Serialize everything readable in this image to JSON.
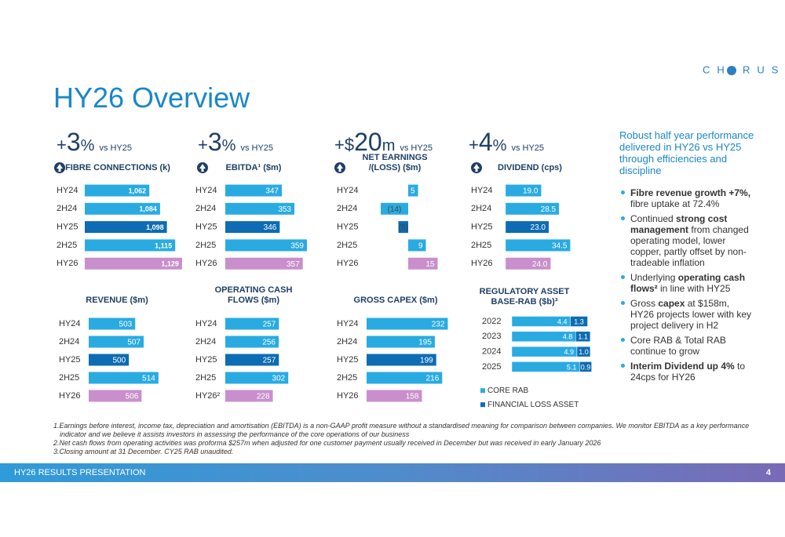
{
  "header": {
    "title": "HY26 Overview",
    "logo": [
      "CH",
      "RUS"
    ]
  },
  "chart_data": [
    {
      "type": "bar",
      "title": "FIBRE CONNECTIONS (k)",
      "headline": {
        "prefix": "+",
        "value": 3,
        "unit": "%",
        "comparison": "vs HY25"
      },
      "categories": [
        "HY24",
        "2H24",
        "HY25",
        "2H25",
        "HY26"
      ],
      "values": [
        1062,
        1084,
        1098,
        1115,
        1129
      ],
      "value_labels": [
        "1,062",
        "1,084",
        "1,098",
        "1,115",
        "1,129"
      ],
      "colors": [
        "#29abe2",
        "#29abe2",
        "#0d6cb3",
        "#29abe2",
        "#c88fcc"
      ],
      "xlim": [
        930,
        1150
      ]
    },
    {
      "type": "bar",
      "title": "EBITDA¹ ($m)",
      "headline": {
        "prefix": "+",
        "value": 3,
        "unit": "%",
        "comparison": "vs HY25"
      },
      "categories": [
        "HY24",
        "2H24",
        "HY25",
        "2H25",
        "HY26"
      ],
      "values": [
        347,
        353,
        346,
        359,
        357
      ],
      "colors": [
        "#29abe2",
        "#29abe2",
        "#0d6cb3",
        "#29abe2",
        "#c88fcc"
      ],
      "xlim": [
        320,
        365
      ]
    },
    {
      "type": "bar",
      "title": "NET EARNINGS /(LOSS) ($m)",
      "headline": {
        "prefix": "+$",
        "value": 20,
        "unit": "m",
        "comparison": "vs HY25"
      },
      "categories": [
        "HY24",
        "2H24",
        "HY25",
        "2H25",
        "HY26"
      ],
      "values": [
        5,
        -14,
        -5,
        9,
        15
      ],
      "value_labels": [
        "5",
        "(14)",
        "(5)",
        "9",
        "15"
      ],
      "colors": [
        "#29abe2",
        "#29abe2",
        "#0d6cb3",
        "#29abe2",
        "#c88fcc"
      ],
      "xlim": [
        -18,
        20
      ]
    },
    {
      "type": "bar",
      "title": "DIVIDEND (cps)",
      "headline": {
        "prefix": "+",
        "value": 4,
        "unit": "%",
        "comparison": "vs HY25"
      },
      "categories": [
        "HY24",
        "2H24",
        "HY25",
        "2H25",
        "HY26"
      ],
      "values": [
        19,
        28.5,
        23,
        34.5,
        24
      ],
      "value_labels": [
        "19.0",
        "28.5",
        "23.0",
        "34.5",
        "24.0"
      ],
      "colors": [
        "#29abe2",
        "#29abe2",
        "#0d6cb3",
        "#29abe2",
        "#c88fcc"
      ],
      "xlim": [
        -3,
        36
      ]
    },
    {
      "type": "bar",
      "title": "REVENUE ($m)",
      "categories": [
        "HY24",
        "2H24",
        "HY25",
        "2H25",
        "HY26"
      ],
      "values": [
        503,
        507,
        500,
        514,
        506
      ],
      "colors": [
        "#29abe2",
        "#29abe2",
        "#0d6cb3",
        "#29abe2",
        "#c88fcc"
      ],
      "xlim": [
        481,
        520
      ]
    },
    {
      "type": "bar",
      "title": "OPERATING CASH FLOWS ($m)",
      "categories": [
        "HY24",
        "2H24",
        "HY25",
        "2H25",
        "HY26²"
      ],
      "values": [
        257,
        256,
        257,
        302,
        228
      ],
      "colors": [
        "#29abe2",
        "#29abe2",
        "#0d6cb3",
        "#29abe2",
        "#c88fcc"
      ],
      "xlim": [
        0,
        320
      ]
    },
    {
      "type": "bar",
      "title": "GROSS CAPEX ($m)",
      "categories": [
        "HY24",
        "2H24",
        "HY25",
        "2H25",
        "HY26"
      ],
      "values": [
        232,
        195,
        199,
        216,
        158
      ],
      "colors": [
        "#29abe2",
        "#29abe2",
        "#0d6cb3",
        "#29abe2",
        "#c88fcc"
      ],
      "xlim": [
        0,
        240
      ]
    },
    {
      "type": "stacked_bar",
      "title": "REGULATORY ASSET BASE-RAB ($b)³",
      "categories": [
        "2022",
        "2023",
        "2024",
        "2025"
      ],
      "series": [
        {
          "name": "CORE RAB",
          "color": "#29abe2",
          "values": [
            4.4,
            4.8,
            4.9,
            5.1
          ]
        },
        {
          "name": "FINANCIAL LOSS ASSET",
          "color": "#0d6cb3",
          "values": [
            1.3,
            1.1,
            1.0,
            0.9
          ],
          "value_labels": [
            "1.3",
            "1.1",
            "1.0",
            "0.9"
          ]
        }
      ],
      "xlim": [
        0,
        6.2
      ]
    }
  ],
  "summary": {
    "headline": "Robust half year performance delivered in HY26 vs HY25 through efficiencies and discipline",
    "bullets": [
      [
        {
          "text": "Fibre revenue growth +7%,",
          "bold": true
        },
        {
          "text": " fibre uptake at 72.4%"
        }
      ],
      [
        {
          "text": "Continued "
        },
        {
          "text": "strong cost management",
          "bold": true
        },
        {
          "text": " from changed operating model, lower copper, partly offset by non-tradeable inflation"
        }
      ],
      [
        {
          "text": "Underlying "
        },
        {
          "text": "operating cash flows²",
          "bold": true
        },
        {
          "text": " in line with HY25"
        }
      ],
      [
        {
          "text": "Gross "
        },
        {
          "text": "capex",
          "bold": true
        },
        {
          "text": " at $158m, HY26 projects lower with key project delivery in H2"
        }
      ],
      [
        {
          "text": "Core RAB & Total RAB continue to grow"
        }
      ],
      [
        {
          "text": "Interim Dividend up 4%",
          "bold": true
        },
        {
          "text": " to 24cps for HY26"
        }
      ]
    ]
  },
  "footnotes": [
    "1.Earnings before interest, income tax, depreciation and amortisation (EBITDA) is a non-GAAP profit measure without a standardised meaning for comparison between companies.  We monitor EBITDA as a key performance indicator and we believe it assists investors in assessing the performance of the core operations of our business",
    "2.Net cash flows from operating activities was proforma $257m when adjusted for one customer payment usually received in December but was received in early January 2026",
    "3.Closing amount at 31 December. CY25 RAB unaudited."
  ],
  "footer": {
    "text": "HY26 RESULTS PRESENTATION",
    "page": "4"
  }
}
